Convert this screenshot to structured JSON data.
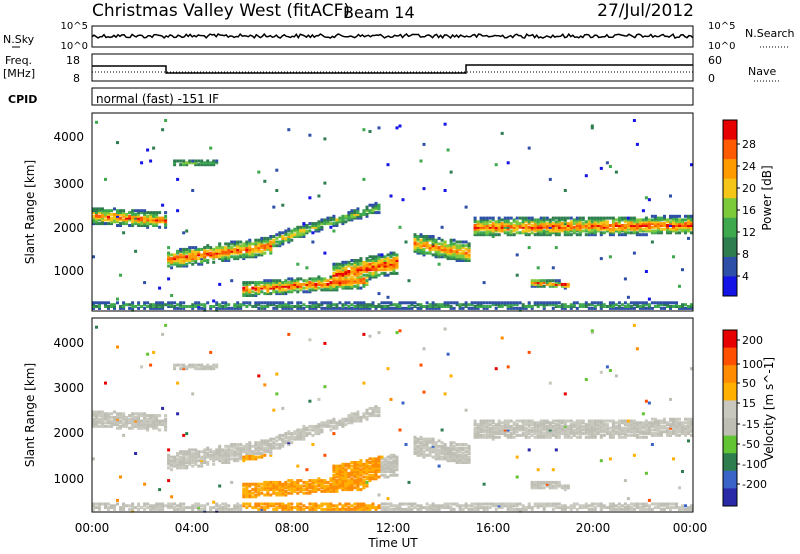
{
  "header": {
    "station": "Christmas Valley West (fitACF)",
    "beam": "Beam 14",
    "date": "27/Jul/2012"
  },
  "noise_panel": {
    "left_label": "N.Sky",
    "right_label": "N.Search",
    "left_ticks": [
      "10^5",
      "10^0"
    ],
    "right_ticks": [
      "10^5",
      "10^0"
    ]
  },
  "freq_panel": {
    "left_label_1": "Freq.",
    "left_label_2": "[MHz]",
    "left_ticks": [
      "18",
      "8"
    ],
    "right_label": "Nave",
    "right_ticks": [
      "60",
      "0"
    ]
  },
  "cpid": {
    "label": "CPID",
    "value": "normal (fast) -151 IF"
  },
  "colors": {
    "power": [
      "#1414e6",
      "#2e4fa8",
      "#2e7d4f",
      "#3da84d",
      "#7cc93a",
      "#f5c518",
      "#ff9a00",
      "#ff5a00",
      "#e60000"
    ],
    "velocity": [
      "#2a2aa8",
      "#3a64c8",
      "#2e7d4f",
      "#63c433",
      "#bebeb4",
      "#c8c8be",
      "#ffb000",
      "#ff8c00",
      "#ff5000",
      "#e60000"
    ]
  },
  "chart_data": [
    {
      "type": "heatmap",
      "name": "power",
      "ylabel": "Slant Range [km]",
      "yticks": [
        "1000",
        "2000",
        "3000",
        "4000"
      ],
      "ylim": [
        200,
        4500
      ],
      "xlim_hours": [
        0,
        24
      ],
      "colorbar_label": "Power [dB]",
      "colorbar_ticks": [
        "4",
        "8",
        "12",
        "16",
        "20",
        "24",
        "28"
      ],
      "colorbar_range": [
        0,
        32
      ]
    },
    {
      "type": "heatmap",
      "name": "velocity",
      "ylabel": "Slant Range [km]",
      "yticks": [
        "1000",
        "2000",
        "3000",
        "4000"
      ],
      "ylim": [
        200,
        4500
      ],
      "xlim_hours": [
        0,
        24
      ],
      "colorbar_label": "Velocity [m s^-1]",
      "colorbar_ticks": [
        "200",
        "100",
        "50",
        "15",
        "-15",
        "-50",
        "-100",
        "-200"
      ]
    }
  ],
  "x_axis": {
    "ticks": [
      "00:00",
      "04:00",
      "08:00",
      "12:00",
      "16:00",
      "20:00",
      "00:00"
    ],
    "label": "Time UT"
  }
}
